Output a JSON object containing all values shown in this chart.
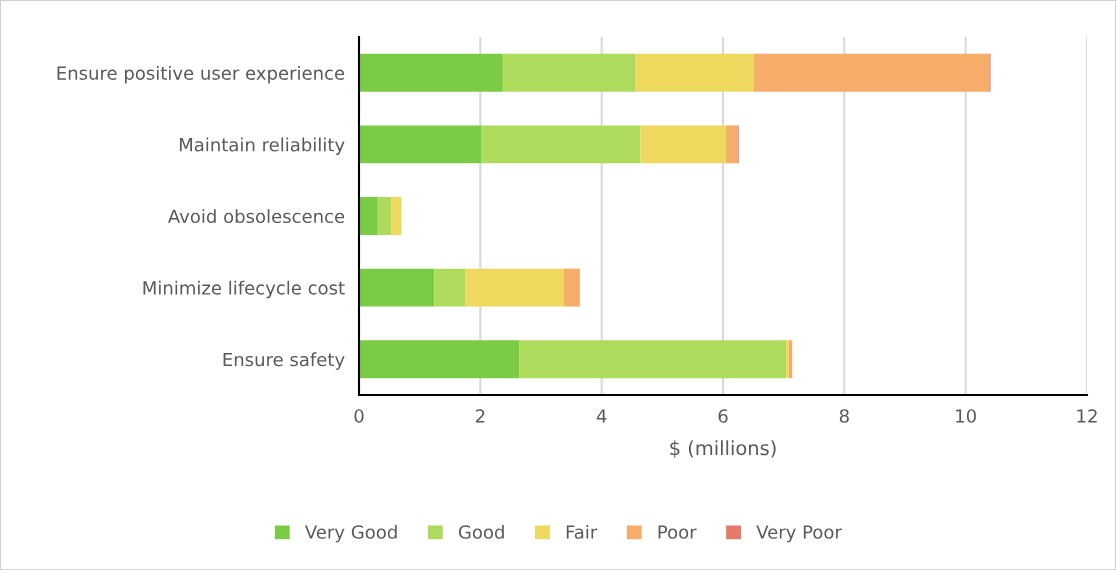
{
  "chart_data": {
    "type": "bar",
    "orientation": "horizontal",
    "stacked": true,
    "categories": [
      "Ensure positive user experience",
      "Maintain reliability",
      "Avoid obsolescence",
      "Minimize lifecycle cost",
      "Ensure safety"
    ],
    "series": [
      {
        "name": "Very Good",
        "color": "#7acc44",
        "values": [
          2.37,
          2.02,
          0.31,
          1.24,
          2.64
        ]
      },
      {
        "name": "Good",
        "color": "#afdb5c",
        "values": [
          2.19,
          2.62,
          0.22,
          0.51,
          4.4
        ]
      },
      {
        "name": "Fair",
        "color": "#eed85e",
        "values": [
          1.95,
          1.41,
          0.17,
          1.63,
          0.04
        ]
      },
      {
        "name": "Poor",
        "color": "#f6ad6a",
        "values": [
          3.88,
          0.19,
          null,
          0.26,
          0.06
        ]
      },
      {
        "name": "Very Poor",
        "color": "#e57a68",
        "values": [
          0.02,
          0.02,
          null,
          null,
          null
        ]
      }
    ],
    "xlabel": "$ (millions)",
    "xlim": [
      0,
      12
    ],
    "xticks": [
      0,
      2,
      4,
      6,
      8,
      10,
      12
    ],
    "grid": "x",
    "legend": "bottom"
  }
}
